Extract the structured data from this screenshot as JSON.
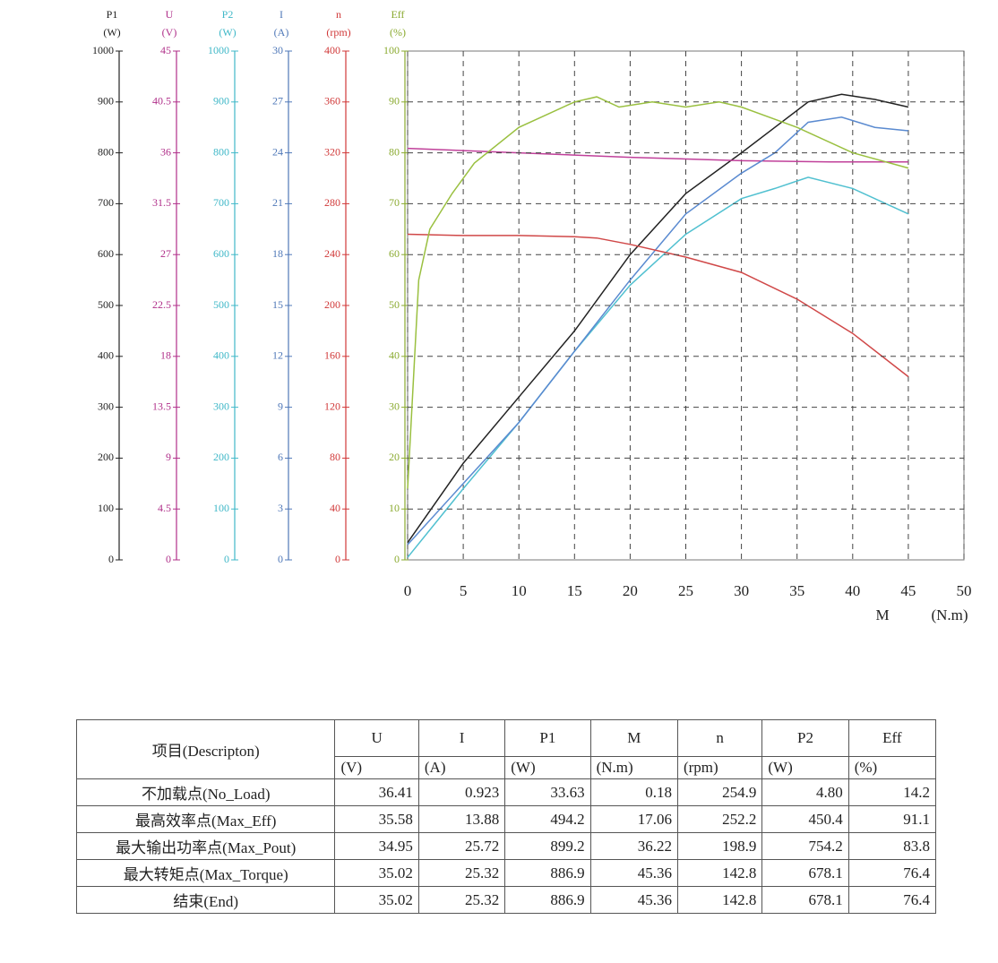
{
  "chart_data": {
    "type": "line",
    "grid": true,
    "xlim": [
      0,
      50
    ],
    "xticks": [
      0,
      5,
      10,
      15,
      20,
      25,
      30,
      35,
      40,
      45,
      50
    ],
    "x_label": "M",
    "x_unit": "(N.m)",
    "axes": [
      {
        "name": "P1",
        "unit": "(W)",
        "color": "#222222",
        "lim": [
          0,
          1000
        ],
        "ticks": [
          0,
          100,
          200,
          300,
          400,
          500,
          600,
          700,
          800,
          900,
          1000
        ],
        "series": {
          "color": "#222222",
          "x": [
            0,
            5,
            10,
            15,
            20,
            25,
            30,
            33,
            36,
            39,
            42,
            45
          ],
          "values": [
            34,
            190,
            320,
            450,
            600,
            720,
            800,
            850,
            900,
            915,
            905,
            890
          ]
        }
      },
      {
        "name": "U",
        "unit": "(V)",
        "color": "#b0308a",
        "lim": [
          0,
          45
        ],
        "ticks": [
          0,
          4.5,
          9,
          13.5,
          18,
          22.5,
          27,
          31.5,
          36,
          40.5,
          45
        ],
        "series": {
          "color": "#c0409a",
          "x": [
            0,
            10,
            20,
            30,
            38,
            45
          ],
          "values": [
            36.4,
            36,
            35.6,
            35.3,
            35.2,
            35.2
          ]
        }
      },
      {
        "name": "P2",
        "unit": "(W)",
        "color": "#40b8c8",
        "lim": [
          0,
          1000
        ],
        "ticks": [
          0,
          100,
          200,
          300,
          400,
          500,
          600,
          700,
          800,
          900,
          1000
        ],
        "series": {
          "color": "#50c0d0",
          "x": [
            0,
            5,
            10,
            15,
            20,
            25,
            30,
            33,
            36,
            40,
            45
          ],
          "values": [
            5,
            140,
            270,
            410,
            540,
            640,
            710,
            730,
            752,
            730,
            680
          ]
        }
      },
      {
        "name": "I",
        "unit": "(A)",
        "color": "#4f78b8",
        "lim": [
          0,
          30
        ],
        "ticks": [
          0,
          3,
          6,
          9,
          12,
          15,
          18,
          21,
          24,
          27,
          30
        ],
        "series": {
          "color": "#5a8ad0",
          "x": [
            0,
            5,
            10,
            15,
            20,
            25,
            30,
            33,
            36,
            39,
            42,
            45
          ],
          "values": [
            0.9,
            4.5,
            8.1,
            12.3,
            16.5,
            20.4,
            22.8,
            24,
            25.8,
            26.1,
            25.5,
            25.3
          ]
        }
      },
      {
        "name": "n",
        "unit": "(rpm)",
        "color": "#d03838",
        "lim": [
          0,
          400
        ],
        "ticks": [
          0,
          40,
          80,
          120,
          160,
          200,
          240,
          280,
          320,
          360,
          400
        ],
        "series": {
          "color": "#d04848",
          "x": [
            0,
            5,
            10,
            15,
            17,
            20,
            25,
            30,
            35,
            40,
            45
          ],
          "values": [
            256,
            255,
            255,
            254,
            253,
            248,
            238,
            226,
            205,
            178,
            144
          ]
        }
      },
      {
        "name": "Eff",
        "unit": "(%)",
        "color": "#8aaa30",
        "lim": [
          0,
          100
        ],
        "ticks": [
          0,
          10,
          20,
          30,
          40,
          50,
          60,
          70,
          80,
          90,
          100
        ],
        "series": {
          "color": "#9ac040",
          "x": [
            0,
            1,
            2,
            4,
            6,
            10,
            15,
            17,
            19,
            22,
            25,
            28,
            30,
            35,
            40,
            45
          ],
          "values": [
            14,
            55,
            65,
            72,
            78,
            85,
            90,
            91,
            89,
            90,
            89,
            90,
            89,
            85,
            80,
            77
          ]
        }
      }
    ]
  },
  "table": {
    "header": "项目(Descripton)",
    "columns": [
      {
        "name": "U",
        "unit": "(V)"
      },
      {
        "name": "I",
        "unit": "(A)"
      },
      {
        "name": "P1",
        "unit": "(W)"
      },
      {
        "name": "M",
        "unit": "(N.m)"
      },
      {
        "name": "n",
        "unit": "(rpm)"
      },
      {
        "name": "P2",
        "unit": "(W)"
      },
      {
        "name": "Eff",
        "unit": "(%)"
      }
    ],
    "rows": [
      [
        "不加载点(No_Load)",
        "36.41",
        "0.923",
        "33.63",
        "0.18",
        "254.9",
        "4.80",
        "14.2"
      ],
      [
        "最高效率点(Max_Eff)",
        "35.58",
        "13.88",
        "494.2",
        "17.06",
        "252.2",
        "450.4",
        "91.1"
      ],
      [
        "最大输出功率点(Max_Pout)",
        "34.95",
        "25.72",
        "899.2",
        "36.22",
        "198.9",
        "754.2",
        "83.8"
      ],
      [
        "最大转矩点(Max_Torque)",
        "35.02",
        "25.32",
        "886.9",
        "45.36",
        "142.8",
        "678.1",
        "76.4"
      ],
      [
        "结束(End)",
        "35.02",
        "25.32",
        "886.9",
        "45.36",
        "142.8",
        "678.1",
        "76.4"
      ]
    ]
  }
}
